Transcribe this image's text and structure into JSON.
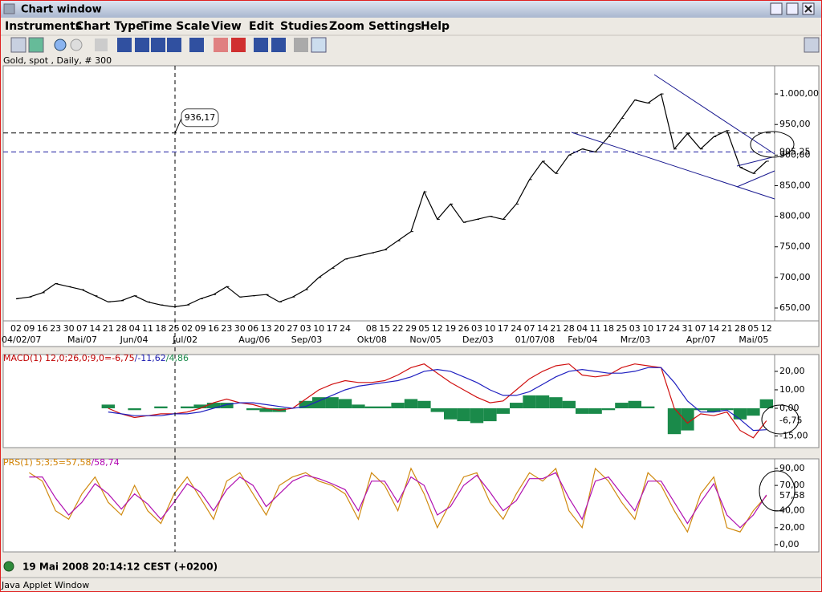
{
  "window": {
    "title": "Chart window"
  },
  "menu": [
    "Instruments",
    "Chart Type",
    "Time Scale",
    "View",
    "Edit",
    "Studies",
    "Zoom",
    "Settings",
    "Help"
  ],
  "chart_data": [
    {
      "type": "line",
      "title": "Gold, spot , Daily, # 300",
      "color": "#000000",
      "categories": [
        "02",
        "09",
        "16",
        "23",
        "30",
        "07",
        "14",
        "21",
        "28",
        "04",
        "11",
        "18",
        "25",
        "02",
        "09",
        "16",
        "23",
        "30",
        "06",
        "13",
        "20",
        "27",
        "03",
        "10",
        "17",
        "24",
        null,
        "08",
        "15",
        "22",
        "29",
        "05",
        "12",
        "19",
        "26",
        "03",
        "10",
        "17",
        "24",
        "07",
        "14",
        "21",
        "28",
        "04",
        "11",
        "18",
        "25",
        "03",
        "10",
        "17",
        "24",
        "31",
        "07",
        "14",
        "21",
        "28",
        "05",
        "12"
      ],
      "month_labels": [
        "04/02/07",
        null,
        null,
        null,
        null,
        "Mai/07",
        null,
        null,
        null,
        "Jun/04",
        null,
        null,
        null,
        "Jul/02",
        null,
        null,
        null,
        null,
        "Aug/06",
        null,
        null,
        null,
        "Sep/03",
        null,
        null,
        null,
        null,
        "Okt/08",
        null,
        null,
        null,
        "Nov/05",
        null,
        null,
        null,
        "Dez/03",
        null,
        null,
        null,
        "01/07/08",
        null,
        null,
        null,
        "Feb/04",
        null,
        null,
        null,
        "Mrz/03",
        null,
        null,
        null,
        null,
        "Apr/07",
        null,
        null,
        null,
        "Mai/05",
        null
      ],
      "values": [
        665,
        668,
        675,
        690,
        685,
        680,
        670,
        660,
        662,
        670,
        660,
        655,
        652,
        655,
        665,
        672,
        685,
        668,
        670,
        672,
        660,
        668,
        680,
        700,
        715,
        730,
        735,
        740,
        745,
        760,
        775,
        840,
        795,
        820,
        790,
        795,
        800,
        795,
        820,
        860,
        890,
        870,
        900,
        910,
        905,
        930,
        960,
        990,
        985,
        1000,
        910,
        935,
        910,
        930,
        940,
        880,
        870,
        890
      ],
      "ylim": [
        629,
        1046
      ],
      "yticks": [
        {
          "value": 650,
          "label": "650,00"
        },
        {
          "value": 700,
          "label": "700,00"
        },
        {
          "value": 750,
          "label": "750,00"
        },
        {
          "value": 800,
          "label": "800,00"
        },
        {
          "value": 850,
          "label": "850,00"
        },
        {
          "value": 900,
          "label": "900,00"
        },
        {
          "value": 950,
          "label": "950,00"
        },
        {
          "value": 1000,
          "label": "1.000,00"
        }
      ],
      "annotations": [
        {
          "value": 936.17,
          "label": "936,17"
        },
        {
          "value": 905.25,
          "label": "905,25",
          "color": "#1a1aa0"
        }
      ]
    },
    {
      "type": "macd",
      "legend": [
        {
          "text": "MACD(1) 12,0;26,0;9,0=-6,75",
          "color": "#c00000"
        },
        {
          "text": "/-11,62",
          "color": "#1a1ab0"
        },
        {
          "text": "/4,86",
          "color": "#1a8a4a"
        }
      ],
      "series": [
        {
          "color": "#d01010",
          "values": [
            null,
            null,
            null,
            null,
            null,
            null,
            null,
            0,
            -3,
            -5,
            -4,
            -3,
            -3,
            -2,
            0,
            3,
            5,
            3,
            2,
            0,
            -1,
            0,
            5,
            10,
            13,
            15,
            14,
            14,
            15,
            18,
            22,
            24,
            19,
            14,
            10,
            6,
            3,
            4,
            10,
            16,
            20,
            23,
            24,
            18,
            17,
            18,
            22,
            24,
            23,
            22,
            0,
            -8,
            -3,
            -4,
            -2,
            -12,
            -16,
            -6.75
          ]
        },
        {
          "color": "#2020c0",
          "values": [
            null,
            null,
            null,
            null,
            null,
            null,
            null,
            -2,
            -3,
            -4,
            -4,
            -4,
            -3,
            -3,
            -2,
            0,
            2,
            3,
            3,
            2,
            1,
            0,
            1,
            4,
            7,
            10,
            12,
            13,
            14,
            15,
            17,
            20,
            21,
            20,
            17,
            14,
            10,
            7,
            7,
            9,
            13,
            17,
            20,
            21,
            20,
            19,
            19,
            20,
            22,
            22,
            14,
            4,
            -2,
            -2,
            -1,
            -6,
            -12,
            -11.62
          ]
        }
      ],
      "histogram": {
        "color": "#1a8a4a",
        "values": [
          null,
          null,
          null,
          null,
          null,
          null,
          null,
          2,
          0,
          -1,
          0,
          1,
          0,
          1,
          2,
          3,
          3,
          0,
          -1,
          -2,
          -2,
          0,
          4,
          6,
          6,
          5,
          2,
          1,
          1,
          3,
          5,
          4,
          -2,
          -6,
          -7,
          -8,
          -7,
          -3,
          3,
          7,
          7,
          6,
          4,
          -3,
          -3,
          -1,
          3,
          4,
          1,
          0,
          -14,
          -12,
          -1,
          -2,
          -1,
          -6,
          -4,
          4.86
        ]
      },
      "current": {
        "value": -6.75,
        "label": "-6,75"
      },
      "ylim": [
        -21.3,
        29.1
      ],
      "yticks": [
        {
          "value": -15,
          "label": "-15,00"
        },
        {
          "value": 0,
          "label": "0,00"
        },
        {
          "value": 10,
          "label": "10,00"
        },
        {
          "value": 20,
          "label": "20,00"
        }
      ]
    },
    {
      "type": "prs",
      "legend": [
        {
          "text": "PRS(1) 5;3;5=57,58",
          "color": "#d08000"
        },
        {
          "text": "/58,74",
          "color": "#b000b0"
        }
      ],
      "series": [
        {
          "color": "#d08a10",
          "values": [
            null,
            85,
            75,
            40,
            30,
            60,
            80,
            50,
            35,
            70,
            40,
            25,
            60,
            80,
            55,
            30,
            75,
            85,
            60,
            35,
            70,
            80,
            85,
            75,
            70,
            60,
            30,
            85,
            70,
            40,
            90,
            60,
            20,
            50,
            80,
            85,
            50,
            30,
            60,
            85,
            75,
            90,
            40,
            20,
            90,
            75,
            50,
            30,
            85,
            70,
            40,
            15,
            60,
            80,
            20,
            15,
            40,
            57.58
          ]
        },
        {
          "color": "#b010b0",
          "values": [
            null,
            80,
            80,
            55,
            35,
            50,
            72,
            60,
            42,
            60,
            48,
            30,
            50,
            72,
            62,
            40,
            65,
            80,
            70,
            45,
            60,
            75,
            82,
            78,
            72,
            65,
            40,
            75,
            75,
            50,
            80,
            70,
            35,
            45,
            70,
            82,
            62,
            40,
            52,
            78,
            78,
            85,
            55,
            30,
            75,
            80,
            60,
            40,
            75,
            75,
            50,
            25,
            50,
            72,
            35,
            20,
            35,
            58.74
          ]
        }
      ],
      "current": {
        "value": 57.58,
        "label": "57,58"
      },
      "ylim": [
        -8.6,
        101.4
      ],
      "yticks": [
        {
          "value": 0,
          "label": "0,00"
        },
        {
          "value": 20,
          "label": "20,00"
        },
        {
          "value": 40,
          "label": "40,00"
        },
        {
          "value": 70,
          "label": "70,00"
        },
        {
          "value": 90,
          "label": "90,00"
        }
      ]
    }
  ],
  "status": {
    "datetime": "19 Mai 2008 20:14:12  CEST (+0200)"
  },
  "footer": "Java Applet Window"
}
